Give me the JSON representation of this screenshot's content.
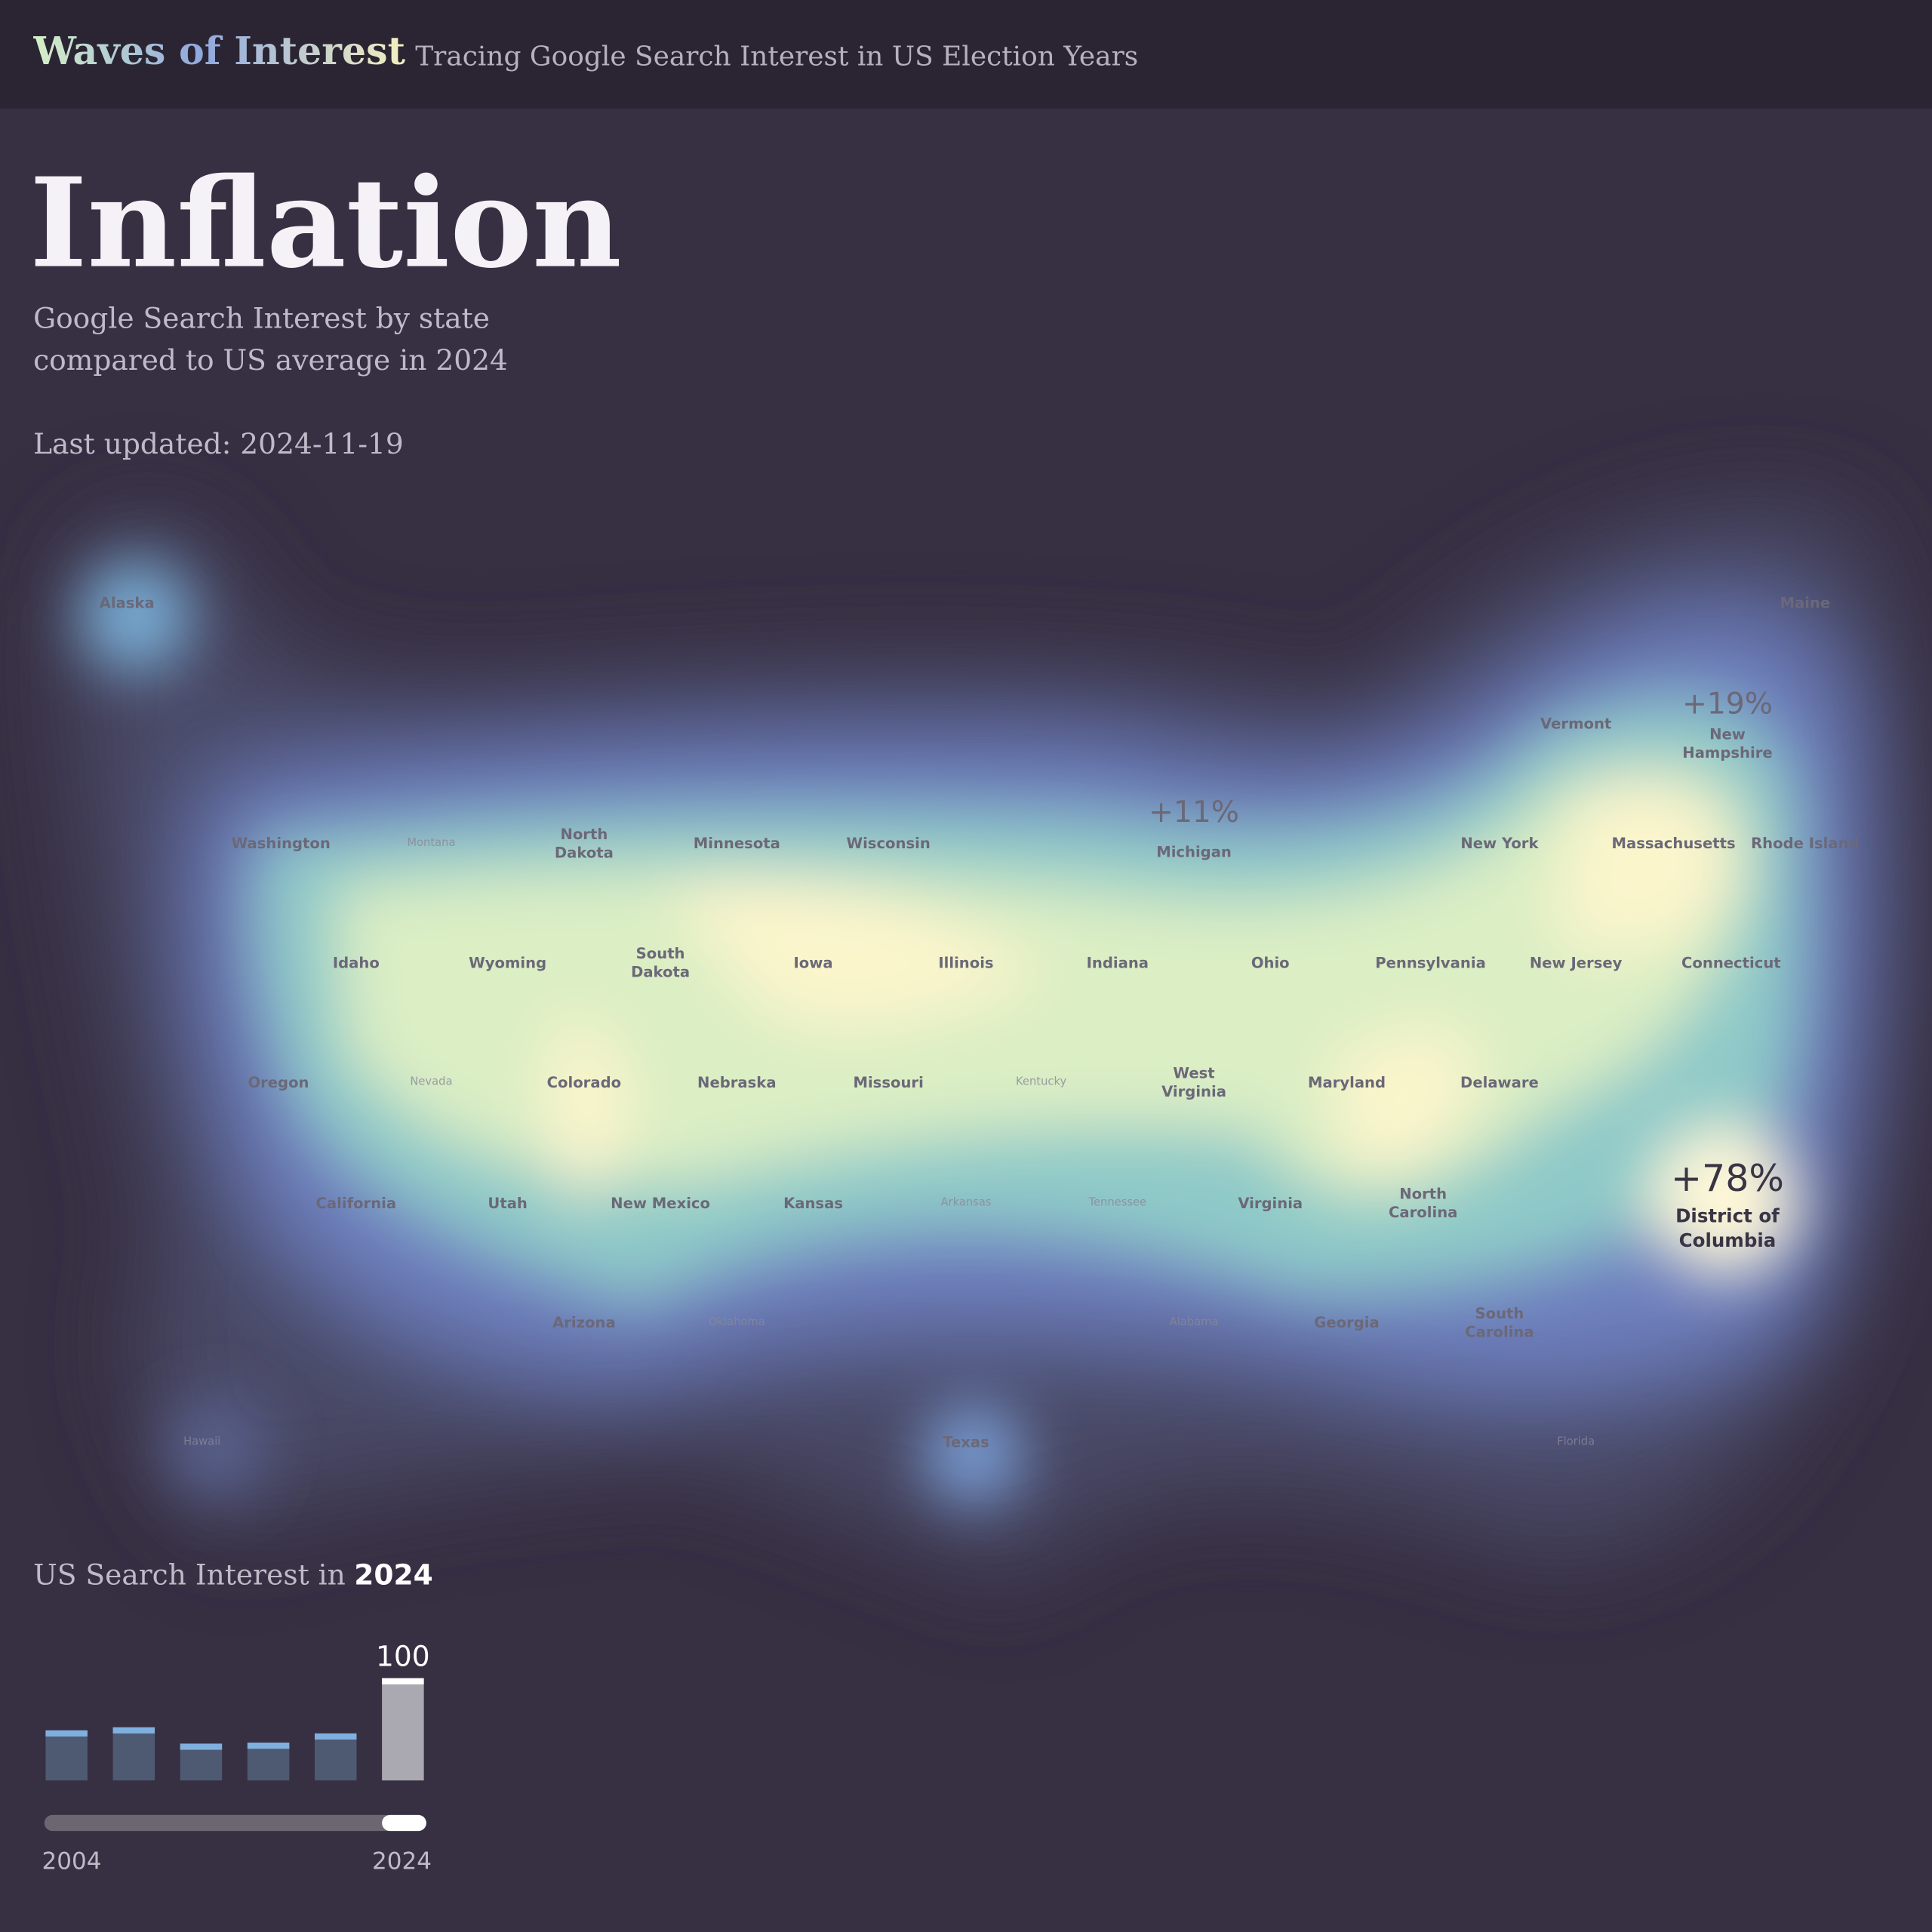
{
  "header": {
    "title": "Waves of Interest",
    "subtitle": "Tracing Google Search Interest in US Election Years"
  },
  "topic": {
    "title": "Inflation",
    "description": [
      "Google Search Interest by state",
      "compared to US average in 2024"
    ],
    "updated": "Last updated: 2024-11-19"
  },
  "map": {
    "states": [
      {
        "name": "Alaska"
      },
      {
        "name": "Maine"
      },
      {
        "name": "Vermont"
      },
      {
        "name": "New Hampshire",
        "change": "+19%"
      },
      {
        "name": "Washington"
      },
      {
        "name": "Montana"
      },
      {
        "name": "North Dakota"
      },
      {
        "name": "Minnesota"
      },
      {
        "name": "Wisconsin"
      },
      {
        "name": "Michigan",
        "change": "+11%"
      },
      {
        "name": "New York"
      },
      {
        "name": "Massachusetts"
      },
      {
        "name": "Rhode Island"
      },
      {
        "name": "Idaho"
      },
      {
        "name": "Wyoming"
      },
      {
        "name": "South Dakota"
      },
      {
        "name": "Iowa"
      },
      {
        "name": "Illinois"
      },
      {
        "name": "Indiana"
      },
      {
        "name": "Ohio"
      },
      {
        "name": "Pennsylvania"
      },
      {
        "name": "New Jersey"
      },
      {
        "name": "Connecticut"
      },
      {
        "name": "Oregon"
      },
      {
        "name": "Nevada"
      },
      {
        "name": "Colorado"
      },
      {
        "name": "Nebraska"
      },
      {
        "name": "Missouri"
      },
      {
        "name": "Kentucky"
      },
      {
        "name": "West Virginia"
      },
      {
        "name": "Maryland"
      },
      {
        "name": "Delaware"
      },
      {
        "name": "District of Columbia",
        "change": "+78%"
      },
      {
        "name": "California"
      },
      {
        "name": "Utah"
      },
      {
        "name": "New Mexico"
      },
      {
        "name": "Kansas"
      },
      {
        "name": "Arkansas"
      },
      {
        "name": "Tennessee"
      },
      {
        "name": "Virginia"
      },
      {
        "name": "North Carolina"
      },
      {
        "name": "Arizona"
      },
      {
        "name": "Oklahoma"
      },
      {
        "name": "Alabama"
      },
      {
        "name": "Georgia"
      },
      {
        "name": "South Carolina"
      },
      {
        "name": "Hawaii"
      },
      {
        "name": "Texas"
      },
      {
        "name": "Florida"
      }
    ]
  },
  "chart_data": {
    "type": "bar",
    "title": [
      "US Search Interest in",
      "2024"
    ],
    "values": [
      49,
      52,
      36,
      37,
      46,
      100
    ],
    "ylim": [
      0,
      100
    ],
    "color": "#4e5a72",
    "cap_color": "#7fb0e0",
    "highlight_color": "#aaa8b0",
    "highlight_cap": "#ffffff",
    "range_labels": [
      "2004",
      "2024"
    ]
  }
}
